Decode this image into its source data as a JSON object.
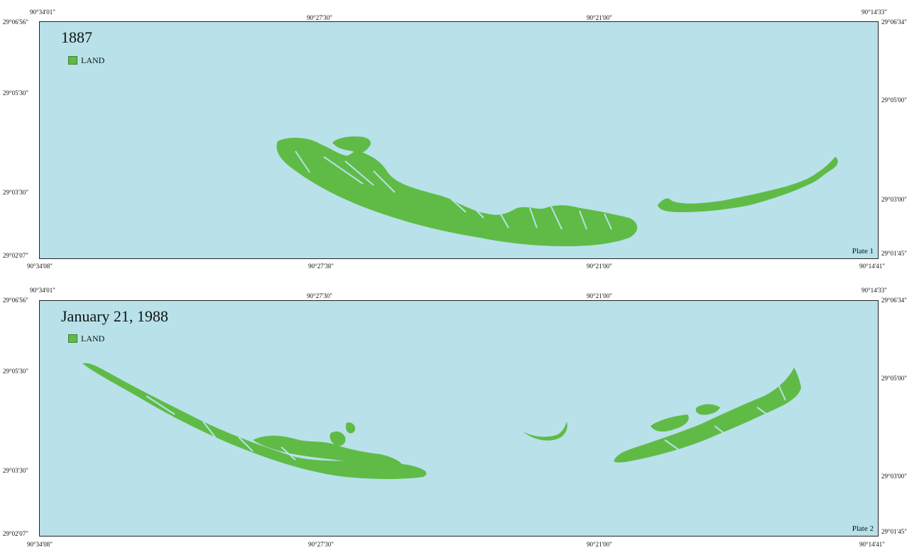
{
  "colors": {
    "water": "#b8e1e9",
    "land": "#5fbb46",
    "border": "#222222"
  },
  "plates": [
    {
      "title": "1887",
      "legend_label": "LAND",
      "plate_label": "Plate 1",
      "top_ticks": [
        "90°34'01\"",
        "90°27'30\"",
        "90°21'00\"",
        "90°14'33\""
      ],
      "bottom_ticks": [
        "90°34'08\"",
        "90°27'38\"",
        "90°21'00\"",
        "90°14'41\""
      ],
      "left_ticks": [
        "29°06'56\"",
        "29°05'30\"",
        "29°03'30\"",
        "29°02'07\""
      ],
      "right_ticks": [
        "29°06'34\"",
        "29°05'00\"",
        "29°03'00\"",
        "29°01'45\""
      ]
    },
    {
      "title": "January 21, 1988",
      "legend_label": "LAND",
      "plate_label": "Plate 2",
      "top_ticks": [
        "90°34'01\"",
        "90°27'30\"",
        "90°21'00\"",
        "90°14'33\""
      ],
      "bottom_ticks": [
        "90°34'08\"",
        "90°27'30\"",
        "90°21'00\"",
        "90°14'41\""
      ],
      "left_ticks": [
        "29°06'56\"",
        "29°05'30\"",
        "29°03'30\"",
        "29°02'07\""
      ],
      "right_ticks": [
        "29°06'34\"",
        "29°05'00\"",
        "29°03'00\"",
        "29°01'45\""
      ]
    }
  ]
}
